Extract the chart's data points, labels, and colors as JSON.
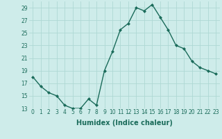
{
  "title": "",
  "xlabel": "Humidex (Indice chaleur)",
  "ylabel": "",
  "x": [
    0,
    1,
    2,
    3,
    4,
    5,
    6,
    7,
    8,
    9,
    10,
    11,
    12,
    13,
    14,
    15,
    16,
    17,
    18,
    19,
    20,
    21,
    22,
    23
  ],
  "y": [
    18.0,
    16.5,
    15.5,
    15.0,
    13.5,
    13.0,
    13.0,
    14.5,
    13.5,
    19.0,
    22.0,
    25.5,
    26.5,
    29.0,
    28.5,
    29.5,
    27.5,
    25.5,
    23.0,
    22.5,
    20.5,
    19.5,
    19.0,
    18.5
  ],
  "ylim": [
    13,
    30
  ],
  "yticks": [
    13,
    15,
    17,
    19,
    21,
    23,
    25,
    27,
    29
  ],
  "xticks": [
    0,
    1,
    2,
    3,
    4,
    5,
    6,
    7,
    8,
    9,
    10,
    11,
    12,
    13,
    14,
    15,
    16,
    17,
    18,
    19,
    20,
    21,
    22,
    23
  ],
  "line_color": "#1a6b5a",
  "marker": "D",
  "marker_size": 2.0,
  "bg_color": "#ceecea",
  "grid_color": "#aed8d4",
  "tick_fontsize": 5.5,
  "xlabel_fontsize": 7,
  "line_width": 1.0
}
